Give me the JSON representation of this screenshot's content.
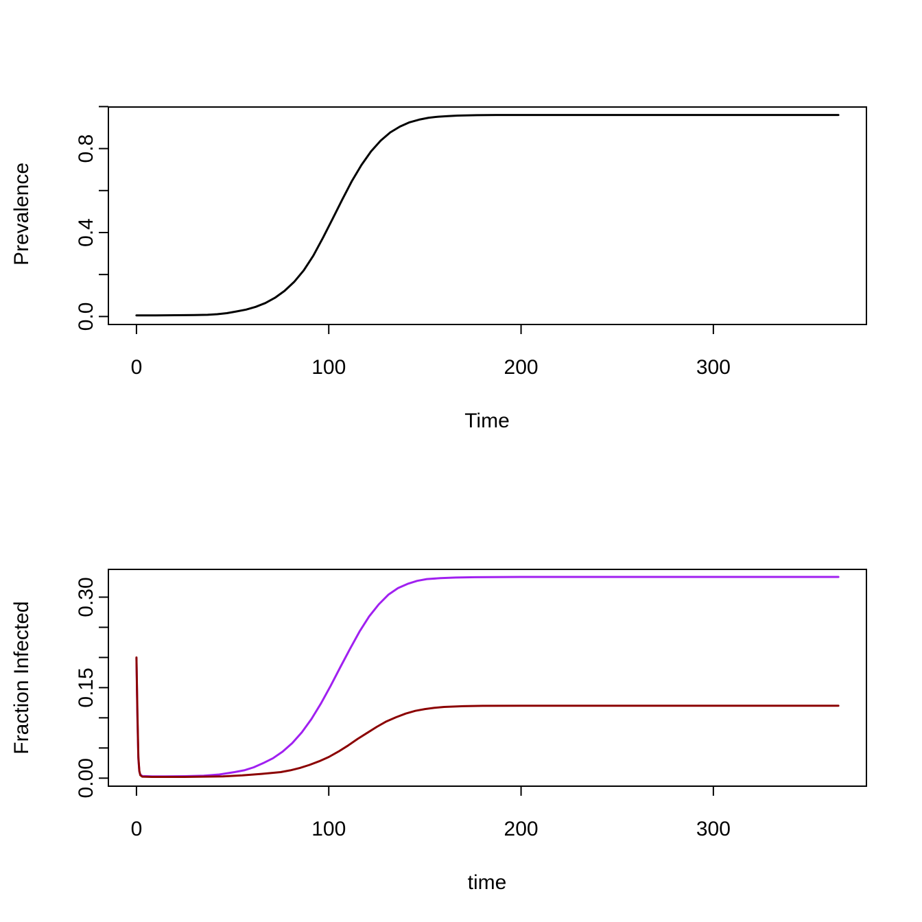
{
  "figure": {
    "background": "#ffffff",
    "axis_color": "#000000"
  },
  "chart_data": [
    {
      "type": "line",
      "name": "prevalence",
      "title": "",
      "xlabel": "Time",
      "ylabel": "Prevalence",
      "xlim": [
        -14.6,
        379.6
      ],
      "ylim": [
        -0.038,
        0.998
      ],
      "grid": false,
      "legend": null,
      "xticks": {
        "values": [
          0,
          100,
          200,
          300
        ],
        "labels": [
          "0",
          "100",
          "200",
          "300"
        ]
      },
      "yticks": {
        "values": [
          0,
          0.2,
          0.4,
          0.6,
          0.8,
          1.0
        ],
        "labels": [
          "0.0",
          "",
          "0.4",
          "",
          "0.8",
          ""
        ]
      },
      "series": [
        {
          "name": "prevalence",
          "color": "#000000",
          "width": 3,
          "points": [
            [
              0,
              0.005
            ],
            [
              10,
              0.005
            ],
            [
              20,
              0.006
            ],
            [
              30,
              0.007
            ],
            [
              37,
              0.008
            ],
            [
              42,
              0.011
            ],
            [
              47,
              0.016
            ],
            [
              52,
              0.024
            ],
            [
              57,
              0.033
            ],
            [
              62,
              0.046
            ],
            [
              67,
              0.064
            ],
            [
              72,
              0.089
            ],
            [
              77,
              0.122
            ],
            [
              82,
              0.165
            ],
            [
              87,
              0.22
            ],
            [
              92,
              0.29
            ],
            [
              97,
              0.375
            ],
            [
              102,
              0.465
            ],
            [
              107,
              0.557
            ],
            [
              112,
              0.645
            ],
            [
              117,
              0.722
            ],
            [
              122,
              0.787
            ],
            [
              127,
              0.838
            ],
            [
              132,
              0.877
            ],
            [
              137,
              0.905
            ],
            [
              142,
              0.925
            ],
            [
              147,
              0.938
            ],
            [
              152,
              0.947
            ],
            [
              157,
              0.952
            ],
            [
              162,
              0.955
            ],
            [
              167,
              0.957
            ],
            [
              177,
              0.959
            ],
            [
              187,
              0.96
            ],
            [
              200,
              0.96
            ],
            [
              230,
              0.96
            ],
            [
              260,
              0.96
            ],
            [
              290,
              0.96
            ],
            [
              320,
              0.96
            ],
            [
              345,
              0.96
            ],
            [
              365,
              0.96
            ]
          ]
        }
      ]
    },
    {
      "type": "line",
      "name": "fraction-infected",
      "title": "",
      "xlabel": "time",
      "ylabel": "Fraction Infected",
      "xlim": [
        -14.6,
        379.6
      ],
      "ylim": [
        -0.0133,
        0.346
      ],
      "grid": false,
      "legend": null,
      "xticks": {
        "values": [
          0,
          100,
          200,
          300
        ],
        "labels": [
          "0",
          "100",
          "200",
          "300"
        ]
      },
      "yticks": {
        "values": [
          0,
          0.05,
          0.1,
          0.15,
          0.2,
          0.25,
          0.3
        ],
        "labels": [
          "0.00",
          "",
          "",
          "0.15",
          "",
          "",
          "0.30"
        ]
      },
      "series": [
        {
          "name": "fraction-infected-purple",
          "color": "#A020F0",
          "width": 3,
          "points": [
            [
              0,
              0.199
            ],
            [
              0.5,
              0.1
            ],
            [
              1,
              0.032
            ],
            [
              1.5,
              0.011
            ],
            [
              2,
              0.006
            ],
            [
              3,
              0.0035
            ],
            [
              8,
              0.003
            ],
            [
              15,
              0.003
            ],
            [
              25,
              0.0032
            ],
            [
              35,
              0.004
            ],
            [
              43,
              0.006
            ],
            [
              51,
              0.01
            ],
            [
              56,
              0.013
            ],
            [
              61,
              0.018
            ],
            [
              66,
              0.025
            ],
            [
              71,
              0.033
            ],
            [
              76,
              0.044
            ],
            [
              81,
              0.058
            ],
            [
              86,
              0.076
            ],
            [
              91,
              0.098
            ],
            [
              96,
              0.124
            ],
            [
              101,
              0.153
            ],
            [
              106,
              0.184
            ],
            [
              111,
              0.214
            ],
            [
              116,
              0.243
            ],
            [
              121,
              0.268
            ],
            [
              126,
              0.288
            ],
            [
              131,
              0.304
            ],
            [
              136,
              0.315
            ],
            [
              141,
              0.322
            ],
            [
              146,
              0.327
            ],
            [
              151,
              0.33
            ],
            [
              158,
              0.3315
            ],
            [
              166,
              0.3325
            ],
            [
              176,
              0.333
            ],
            [
              200,
              0.3335
            ],
            [
              230,
              0.3335
            ],
            [
              260,
              0.3335
            ],
            [
              290,
              0.3335
            ],
            [
              320,
              0.3335
            ],
            [
              345,
              0.3335
            ],
            [
              365,
              0.3335
            ]
          ]
        },
        {
          "name": "fraction-infected-darkred",
          "color": "#8B0000",
          "width": 3,
          "points": [
            [
              0,
              0.2
            ],
            [
              0.5,
              0.11
            ],
            [
              1,
              0.035
            ],
            [
              1.5,
              0.012
            ],
            [
              2,
              0.005
            ],
            [
              3,
              0.0025
            ],
            [
              8,
              0.002
            ],
            [
              15,
              0.002
            ],
            [
              25,
              0.002
            ],
            [
              35,
              0.0025
            ],
            [
              45,
              0.003
            ],
            [
              55,
              0.0045
            ],
            [
              65,
              0.007
            ],
            [
              75,
              0.01
            ],
            [
              80,
              0.013
            ],
            [
              85,
              0.017
            ],
            [
              90,
              0.022
            ],
            [
              95,
              0.028
            ],
            [
              100,
              0.035
            ],
            [
              105,
              0.044
            ],
            [
              110,
              0.054
            ],
            [
              115,
              0.065
            ],
            [
              120,
              0.075
            ],
            [
              125,
              0.085
            ],
            [
              130,
              0.094
            ],
            [
              135,
              0.101
            ],
            [
              140,
              0.107
            ],
            [
              145,
              0.1115
            ],
            [
              150,
              0.1145
            ],
            [
              155,
              0.1165
            ],
            [
              160,
              0.118
            ],
            [
              170,
              0.1193
            ],
            [
              180,
              0.1198
            ],
            [
              200,
              0.12
            ],
            [
              230,
              0.12
            ],
            [
              260,
              0.12
            ],
            [
              290,
              0.12
            ],
            [
              320,
              0.12
            ],
            [
              345,
              0.12
            ],
            [
              365,
              0.12
            ]
          ]
        }
      ]
    }
  ]
}
